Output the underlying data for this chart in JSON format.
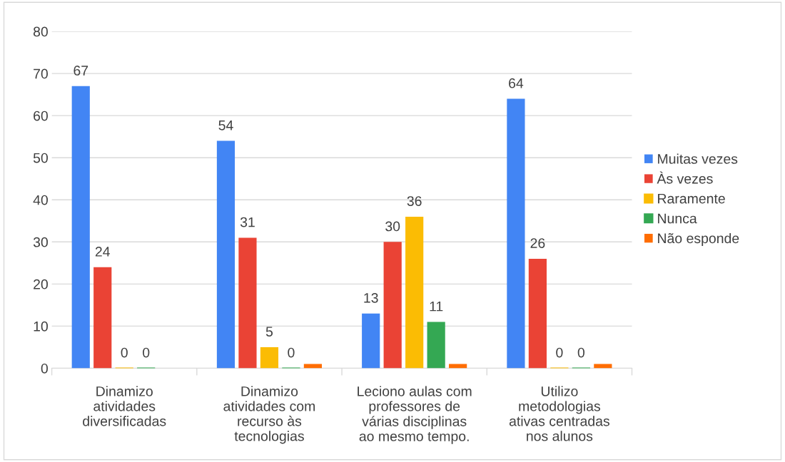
{
  "chart_data": {
    "type": "bar",
    "categories": [
      "Dinamizo\natividades\ndiversificadas",
      "Dinamizo\natividades com\nrecurso às\ntecnologias",
      "Leciono aulas com\nprofessores de\nvárias disciplinas\nao mesmo tempo.",
      "Utilizo\nmetodologias\nativas centradas\nnos alunos"
    ],
    "series": [
      {
        "name": "Muitas vezes",
        "color": "#4285f4",
        "values": [
          67,
          54,
          13,
          64
        ],
        "value_labels": [
          "67",
          "54",
          "13",
          "64"
        ]
      },
      {
        "name": "Às vezes",
        "color": "#ea4335",
        "values": [
          24,
          31,
          30,
          26
        ],
        "value_labels": [
          "24",
          "31",
          "30",
          "26"
        ]
      },
      {
        "name": "Raramente",
        "color": "#fbbc04",
        "values": [
          0,
          5,
          36,
          0
        ],
        "value_labels": [
          "0",
          "5",
          "36",
          "0"
        ]
      },
      {
        "name": "Nunca",
        "color": "#34a853",
        "values": [
          0,
          0,
          11,
          0
        ],
        "value_labels": [
          "0",
          "0",
          "11",
          "0"
        ]
      },
      {
        "name": "Não esponde",
        "color": "#ff6d01",
        "values": [
          null,
          1,
          1,
          1
        ],
        "value_labels": [
          null,
          null,
          null,
          null
        ]
      }
    ],
    "ylim": [
      0,
      80
    ],
    "yticks": [
      0,
      10,
      20,
      30,
      40,
      50,
      60,
      70,
      80
    ],
    "grid": "y",
    "legend": "right"
  }
}
